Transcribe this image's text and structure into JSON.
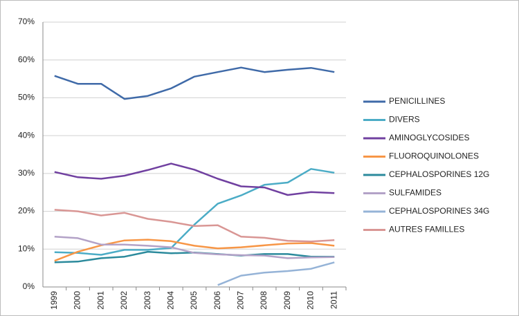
{
  "chart_data": {
    "type": "line",
    "categories": [
      "1999",
      "2000",
      "2001",
      "2002",
      "2003",
      "2004",
      "2005",
      "2006",
      "2007",
      "2008",
      "2009",
      "2010",
      "2011"
    ],
    "ylim": [
      0,
      70
    ],
    "yticks": [
      {
        "value": 0,
        "label": "0%"
      },
      {
        "value": 10,
        "label": "10%"
      },
      {
        "value": 20,
        "label": "20%"
      },
      {
        "value": 30,
        "label": "30%"
      },
      {
        "value": 40,
        "label": "40%"
      },
      {
        "value": 50,
        "label": "50%"
      },
      {
        "value": 60,
        "label": "60%"
      },
      {
        "value": 70,
        "label": "70%"
      }
    ],
    "grid": true,
    "legend": "right",
    "series": [
      {
        "name": "PENICILLINES",
        "color": "#3f6aa8",
        "values": [
          55.8,
          53.7,
          53.7,
          49.7,
          50.5,
          52.5,
          55.6,
          56.8,
          58.0,
          56.8,
          57.4,
          57.9,
          56.8
        ]
      },
      {
        "name": "DIVERS",
        "color": "#4bacc6",
        "values": [
          9.2,
          9.0,
          8.5,
          9.8,
          9.8,
          10.3,
          16.5,
          22.0,
          24.2,
          27.0,
          27.6,
          31.2,
          30.2
        ]
      },
      {
        "name": "AMINOGLYCOSIDES",
        "color": "#7040a0",
        "values": [
          30.4,
          29.0,
          28.6,
          29.4,
          30.9,
          32.6,
          31.0,
          28.6,
          26.6,
          26.3,
          24.3,
          25.1,
          24.8
        ]
      },
      {
        "name": "FLUOROQUINOLONES",
        "color": "#f79646",
        "values": [
          6.9,
          9.3,
          11.0,
          12.3,
          12.5,
          12.1,
          10.9,
          10.2,
          10.5,
          11.0,
          11.5,
          11.6,
          10.9
        ]
      },
      {
        "name": "CEPHALOSPORINES 12G",
        "color": "#2b8a9c",
        "values": [
          6.5,
          6.7,
          7.6,
          8.0,
          9.3,
          8.9,
          9.1,
          8.7,
          8.3,
          8.7,
          8.7,
          8.0,
          8.0
        ]
      },
      {
        "name": "SULFAMIDES",
        "color": "#b3a2c7",
        "values": [
          13.3,
          12.9,
          11.2,
          11.2,
          10.9,
          10.5,
          9.0,
          8.6,
          8.4,
          8.3,
          7.6,
          7.8,
          7.9
        ]
      },
      {
        "name": "CEPHALOSPORINES 34G",
        "color": "#95b3d7",
        "values": [
          null,
          null,
          null,
          null,
          null,
          null,
          null,
          0.5,
          3.0,
          3.8,
          4.2,
          4.8,
          6.5
        ]
      },
      {
        "name": "AUTRES FAMILLES",
        "color": "#d99694",
        "values": [
          20.4,
          20.0,
          18.9,
          19.6,
          18.0,
          17.2,
          16.1,
          16.3,
          13.3,
          13.0,
          12.2,
          12.0,
          12.4
        ]
      }
    ]
  }
}
